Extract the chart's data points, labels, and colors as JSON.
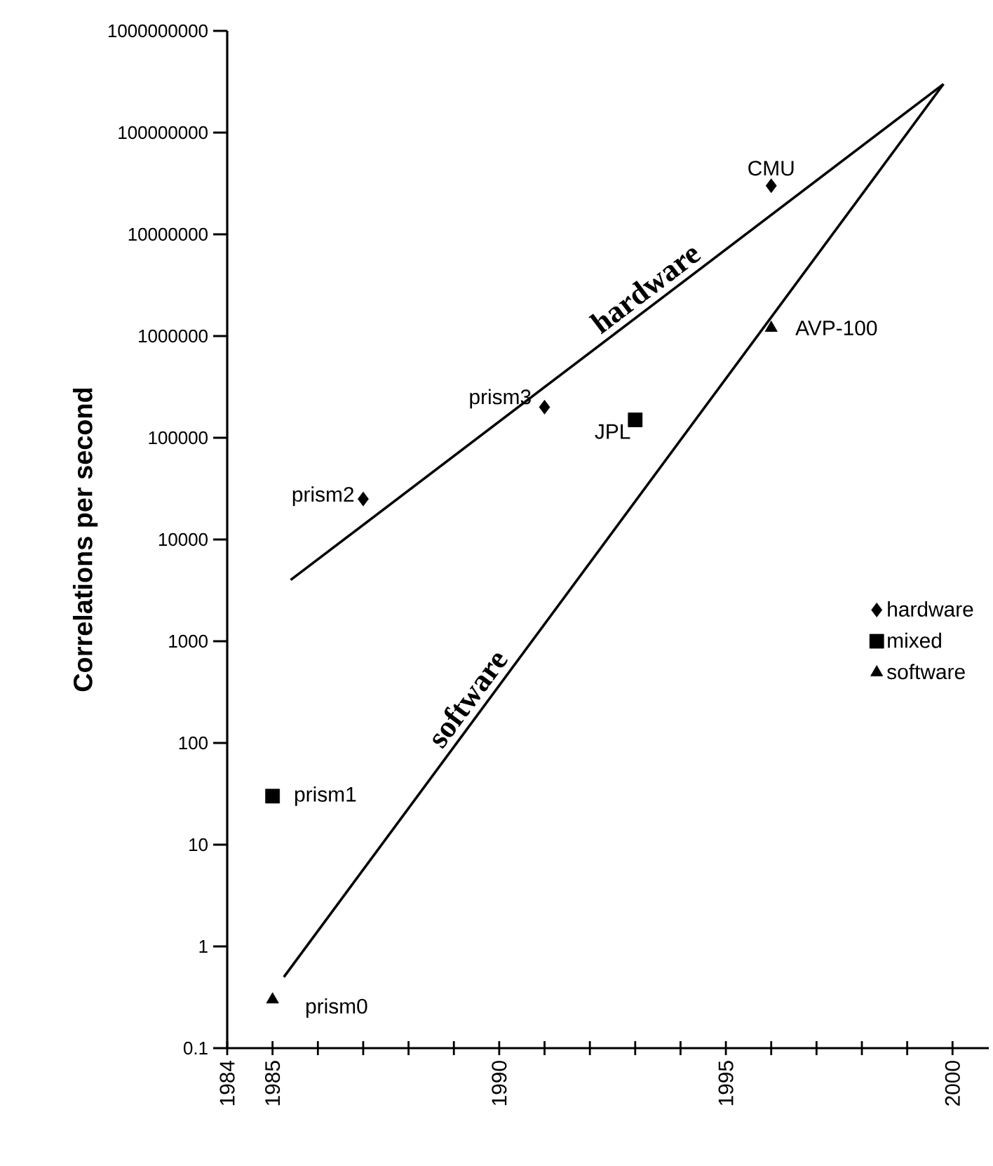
{
  "chart_data": {
    "type": "scatter",
    "ylabel": "Correlations per second",
    "log": "y",
    "xlim": [
      1984,
      2000.8
    ],
    "ylim": [
      0.1,
      1000000000
    ],
    "xticks": [
      1984,
      1985,
      {
        "value": 1986,
        "label": null
      },
      {
        "value": 1987,
        "label": null
      },
      {
        "value": 1988,
        "label": null
      },
      {
        "value": 1989,
        "label": null
      },
      1990,
      {
        "value": 1991,
        "label": null
      },
      {
        "value": 1992,
        "label": null
      },
      {
        "value": 1993,
        "label": null
      },
      {
        "value": 1994,
        "label": null
      },
      1995,
      {
        "value": 1996,
        "label": null
      },
      {
        "value": 1997,
        "label": null
      },
      {
        "value": 1998,
        "label": null
      },
      {
        "value": 1999,
        "label": null
      },
      2000
    ],
    "yticks": [
      0.1,
      1,
      10,
      100,
      1000,
      10000,
      100000,
      1000000,
      10000000,
      100000000,
      1000000000
    ],
    "legend": "right",
    "series": [
      {
        "name": "hardware",
        "color": "#000000",
        "marker": "diamond",
        "x": [
          1987,
          1991,
          1996
        ],
        "values": [
          25000,
          200000,
          30000000
        ]
      },
      {
        "name": "mixed",
        "color": "#000000",
        "marker": "square",
        "x": [
          1985,
          1993
        ],
        "values": [
          30,
          150000
        ]
      },
      {
        "name": "software",
        "color": "#000000",
        "marker": "triangle",
        "x": [
          1985,
          1996
        ],
        "values": [
          0.3,
          1200000
        ]
      },
      {
        "type": "line",
        "name": "hardware",
        "color": "#000000",
        "marker": "none",
        "line_style": "solid",
        "x": [
          1985.4,
          1999.8
        ],
        "values": [
          4000,
          300000000
        ]
      },
      {
        "type": "line",
        "name": "software",
        "color": "#000000",
        "marker": "none",
        "line_style": "solid",
        "x": [
          1985.25,
          1999.8
        ],
        "values": [
          0.5,
          300000000
        ]
      }
    ],
    "annotations": [
      {
        "text": "prism0",
        "x": 1985,
        "y": 0.3
      },
      {
        "text": "prism1",
        "x": 1985,
        "y": 30
      },
      {
        "text": "prism2",
        "x": 1987,
        "y": 25000
      },
      {
        "text": "prism3",
        "x": 1991,
        "y": 200000
      },
      {
        "text": "JPL",
        "x": 1993,
        "y": 150000
      },
      {
        "text": "CMU",
        "x": 1996,
        "y": 30000000
      },
      {
        "text": "AVP-100",
        "x": 1996,
        "y": 1200000
      }
    ]
  }
}
